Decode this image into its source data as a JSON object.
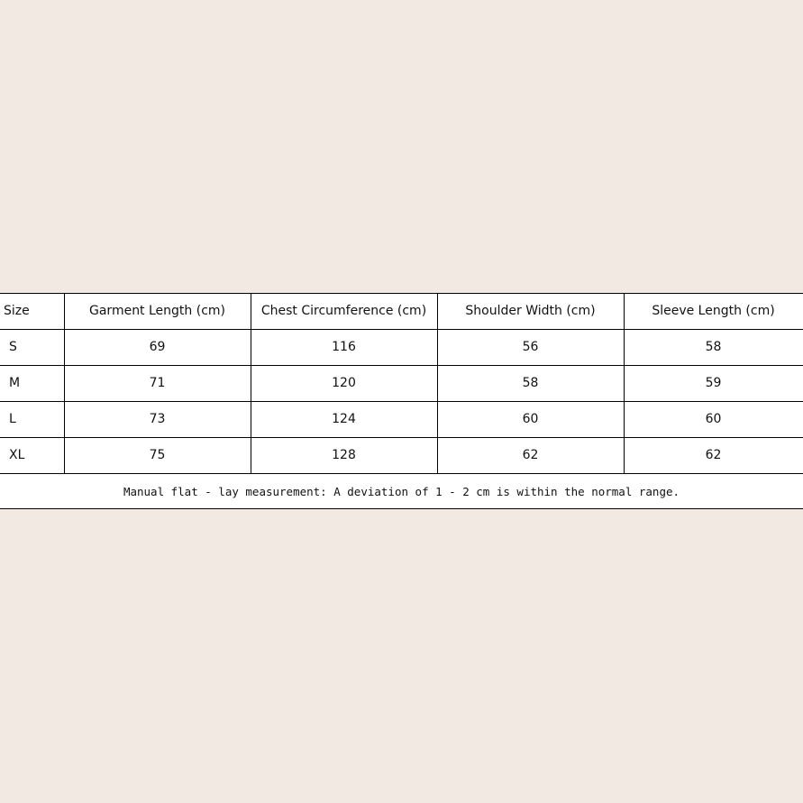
{
  "table": {
    "headers": [
      "Size",
      "Garment Length (cm)",
      "Chest Circumference (cm)",
      "Shoulder Width (cm)",
      "Sleeve Length (cm)"
    ],
    "rows": [
      [
        "S",
        "69",
        "116",
        "56",
        "58"
      ],
      [
        "M",
        "71",
        "120",
        "58",
        "59"
      ],
      [
        "L",
        "73",
        "124",
        "60",
        "60"
      ],
      [
        "XL",
        "75",
        "128",
        "62",
        "62"
      ]
    ],
    "note": "Manual flat - lay measurement: A deviation of 1 - 2 cm is within the normal range."
  },
  "colors": {
    "background": "#f2e9e3",
    "table": "#ffffff",
    "border": "#000000"
  }
}
